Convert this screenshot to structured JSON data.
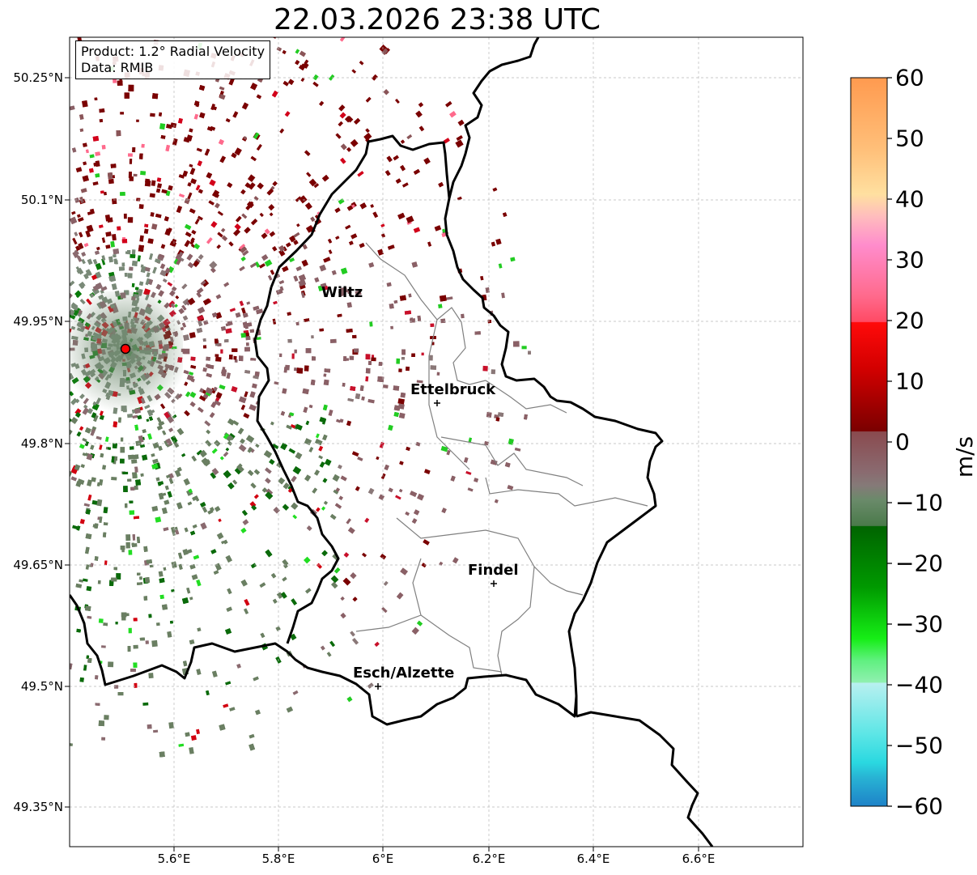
{
  "title": "22.03.2026 23:38 UTC",
  "info": {
    "product": "Product: 1.2° Radial Velocity",
    "source": "Data: RMIB"
  },
  "map": {
    "lat_ticks": [
      "50.25°N",
      "50.1°N",
      "49.95°N",
      "49.8°N",
      "49.65°N",
      "49.5°N",
      "49.35°N"
    ],
    "lon_ticks": [
      "5.6°E",
      "5.8°E",
      "6°E",
      "6.2°E",
      "6.4°E",
      "6.6°E"
    ],
    "cities": [
      {
        "name": "Wiltz"
      },
      {
        "name": "Ettelbruck"
      },
      {
        "name": "Findel"
      },
      {
        "name": "Esch/Alzette"
      }
    ],
    "colors": {
      "border": "#000000",
      "district_lines": "#808080",
      "gridlines": "#c0c0c0",
      "radar_site": "#ff0000"
    }
  },
  "colorbar": {
    "unit": "m/s",
    "ticks": [
      "60",
      "50",
      "40",
      "30",
      "20",
      "10",
      "0",
      "−10",
      "−20",
      "−30",
      "−40",
      "−50",
      "−60"
    ],
    "range": [
      -60,
      60
    ]
  }
}
